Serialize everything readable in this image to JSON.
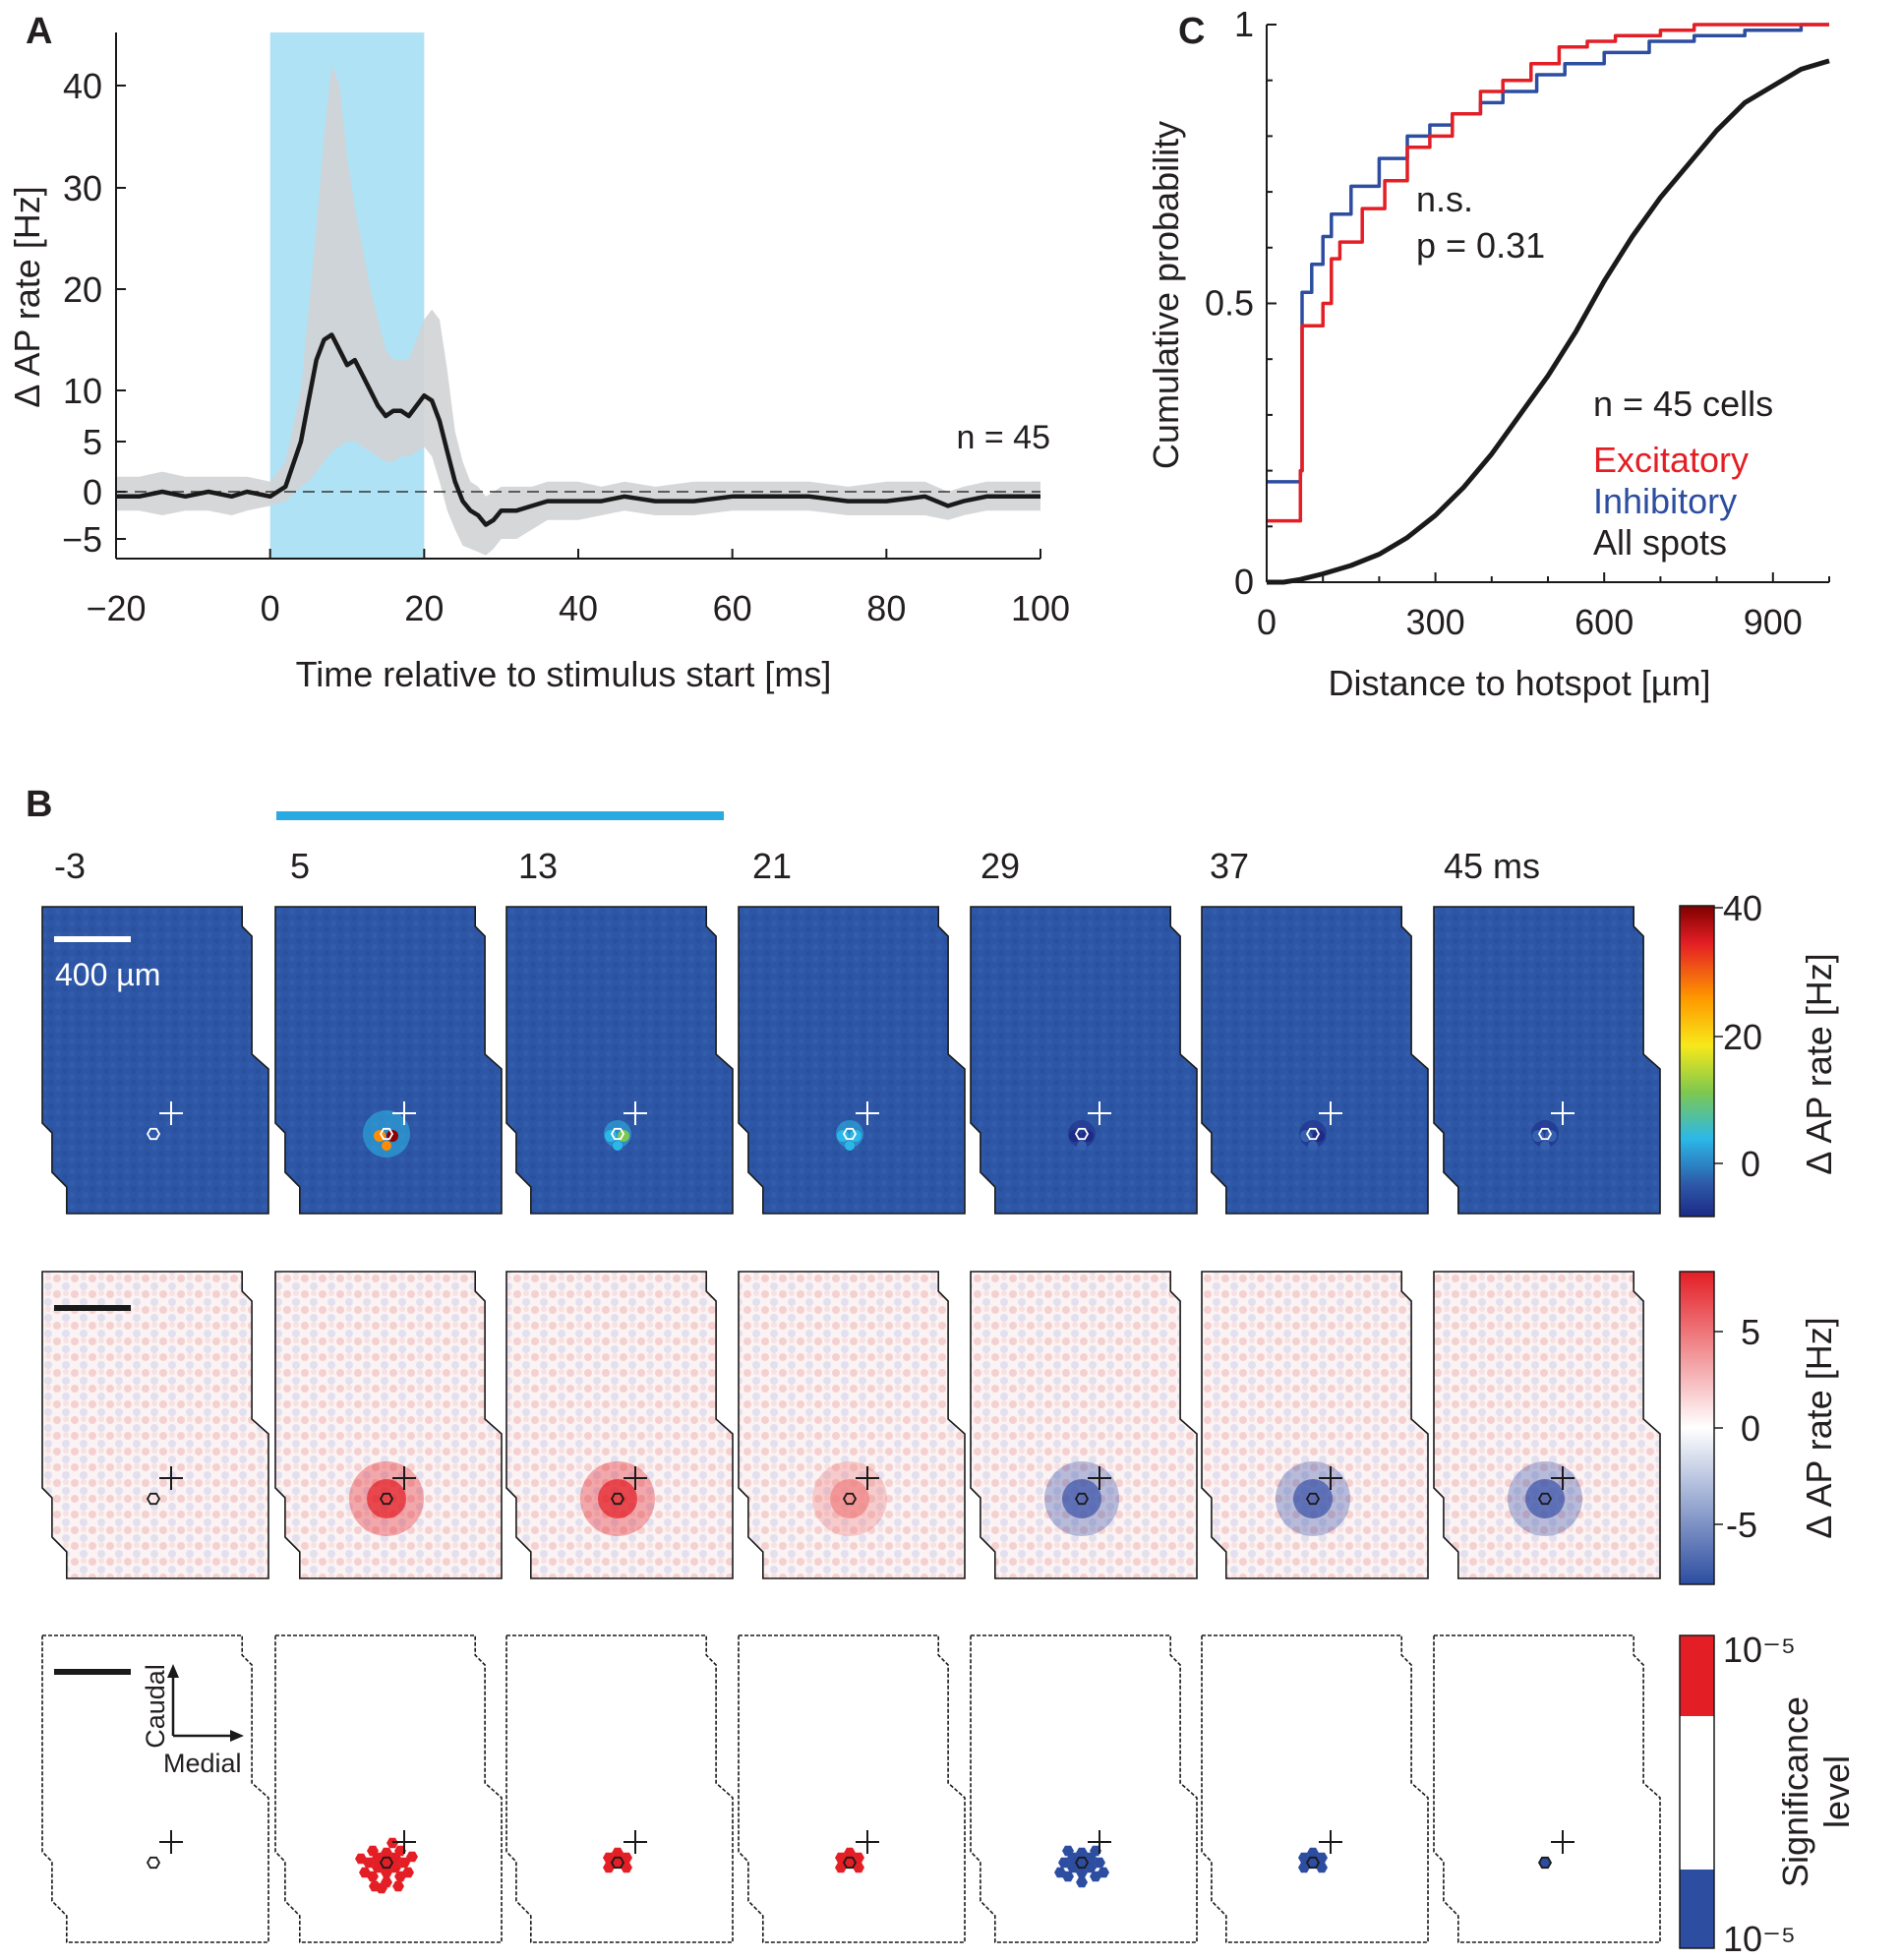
{
  "panel_labels": {
    "a": "A",
    "b": "B",
    "c": "C"
  },
  "colors": {
    "stim": "#b0e2f5",
    "stim_bar": "#29aae1",
    "band": "#d2d3d4",
    "mean": "#1a1a1a",
    "excitatory": "#e31e25",
    "inhibitory": "#2c4da0",
    "all_spots": "#1a1a1a"
  },
  "chart_data": [
    {
      "id": "A",
      "type": "line",
      "xlabel": "Time relative to stimulus start [ms]",
      "ylabel": "Δ AP rate [Hz]",
      "xlim": [
        -20,
        100
      ],
      "ylim": [
        -8,
        45
      ],
      "xticks": [
        -20,
        0,
        20,
        40,
        60,
        80,
        100
      ],
      "xtick_labels": [
        "−20",
        "0",
        "20",
        "40",
        "60",
        "80",
        "100"
      ],
      "yticks": [
        -5,
        0,
        5,
        10,
        20,
        30,
        40
      ],
      "ytick_labels": [
        "−5",
        "0",
        "5",
        "10",
        "20",
        "30",
        "40"
      ],
      "stimulus_window": [
        0,
        20
      ],
      "reference_line": 0,
      "annotation": "n = 45",
      "mean": {
        "x": [
          -20,
          -17,
          -14,
          -11,
          -8,
          -5,
          -3,
          0,
          2,
          4,
          5,
          6,
          7,
          8,
          9,
          10,
          11,
          12,
          13,
          14,
          15,
          16,
          17,
          18,
          19,
          20,
          21,
          22,
          23,
          24,
          25,
          26,
          27,
          28,
          29,
          30,
          32,
          34,
          36,
          38,
          40,
          43,
          46,
          50,
          55,
          60,
          65,
          70,
          75,
          80,
          85,
          88,
          90,
          93,
          96,
          100
        ],
        "y": [
          -0.5,
          -0.5,
          0,
          -0.5,
          0,
          -0.5,
          0,
          -0.5,
          0.5,
          5,
          9,
          13,
          15,
          15.5,
          14,
          12.5,
          13,
          11.5,
          10,
          8.5,
          7.5,
          8,
          8,
          7.5,
          8.5,
          9.5,
          9,
          7,
          4,
          1,
          -1,
          -2,
          -2.5,
          -3.5,
          -3,
          -2,
          -2,
          -1.5,
          -1,
          -1,
          -1,
          -1,
          -0.5,
          -1,
          -1,
          -0.5,
          -0.5,
          -0.5,
          -1,
          -1,
          -0.5,
          -1.5,
          -1,
          -0.5,
          -0.5,
          -0.5
        ]
      },
      "band_upper": [
        1.5,
        1.5,
        2,
        1.5,
        1.5,
        1.5,
        1.5,
        1,
        3,
        10,
        18,
        26,
        35,
        42,
        40,
        33,
        28,
        24,
        20,
        17,
        14,
        13,
        13,
        13,
        15,
        17,
        18,
        17,
        12,
        6,
        3,
        1,
        0.5,
        -0.5,
        0,
        0.5,
        0.5,
        0.5,
        1,
        1,
        1,
        0.5,
        1,
        0.5,
        1,
        1,
        1,
        1,
        0.5,
        1,
        1,
        0,
        0.5,
        1,
        1,
        1
      ],
      "band_lower": [
        -2,
        -2,
        -2.5,
        -2,
        -2,
        -2.5,
        -2,
        -1.5,
        -1,
        0.5,
        1,
        2,
        3,
        4,
        4.5,
        5,
        5,
        4.5,
        4,
        3.5,
        3,
        3,
        3.5,
        3.5,
        4,
        4.5,
        3.5,
        1,
        -2,
        -4,
        -6,
        -6.5,
        -7,
        -7.5,
        -6.5,
        -5,
        -5,
        -4,
        -3,
        -3,
        -3,
        -2.5,
        -2,
        -2.5,
        -2.5,
        -2,
        -2,
        -2,
        -2.5,
        -2.5,
        -2.5,
        -3,
        -2.5,
        -2,
        -2,
        -2
      ]
    },
    {
      "id": "C",
      "type": "line",
      "xlabel": "Distance to hotspot [µm]",
      "ylabel": "Cumulative probability",
      "xlim": [
        0,
        1000
      ],
      "ylim": [
        0,
        1
      ],
      "xticks": [
        0,
        300,
        600,
        900
      ],
      "xtick_labels": [
        "0",
        "300",
        "600",
        "900"
      ],
      "yticks": [
        0,
        0.5,
        1
      ],
      "ytick_labels": [
        "0",
        "0.5",
        "1"
      ],
      "annotation_sig": "n.s.",
      "annotation_p": "p = 0.31",
      "legend_title": "n = 45 cells",
      "series": [
        {
          "name": "Excitatory",
          "x": [
            0,
            60,
            60,
            63,
            63,
            100,
            100,
            115,
            115,
            130,
            130,
            170,
            170,
            210,
            210,
            250,
            250,
            290,
            290,
            330,
            330,
            380,
            380,
            420,
            420,
            470,
            470,
            520,
            520,
            570,
            570,
            620,
            620,
            700,
            700,
            760,
            760,
            1000
          ],
          "y": [
            0.11,
            0.11,
            0.2,
            0.2,
            0.46,
            0.46,
            0.5,
            0.5,
            0.58,
            0.58,
            0.61,
            0.61,
            0.67,
            0.67,
            0.72,
            0.72,
            0.78,
            0.78,
            0.8,
            0.8,
            0.84,
            0.84,
            0.88,
            0.88,
            0.9,
            0.9,
            0.93,
            0.93,
            0.96,
            0.96,
            0.97,
            0.97,
            0.98,
            0.98,
            0.99,
            0.99,
            1,
            1
          ]
        },
        {
          "name": "Inhibitory",
          "x": [
            0,
            60,
            60,
            63,
            63,
            80,
            80,
            100,
            100,
            115,
            115,
            150,
            150,
            200,
            200,
            250,
            250,
            290,
            290,
            330,
            330,
            380,
            380,
            420,
            420,
            480,
            480,
            530,
            530,
            600,
            600,
            680,
            680,
            760,
            760,
            850,
            850,
            950,
            950,
            1000
          ],
          "y": [
            0.18,
            0.18,
            0.2,
            0.2,
            0.52,
            0.52,
            0.57,
            0.57,
            0.62,
            0.62,
            0.66,
            0.66,
            0.71,
            0.71,
            0.76,
            0.76,
            0.8,
            0.8,
            0.82,
            0.82,
            0.84,
            0.84,
            0.86,
            0.86,
            0.88,
            0.88,
            0.91,
            0.91,
            0.93,
            0.93,
            0.95,
            0.95,
            0.97,
            0.97,
            0.98,
            0.98,
            0.99,
            0.99,
            1,
            1
          ]
        },
        {
          "name": "All spots",
          "x": [
            0,
            30,
            60,
            100,
            150,
            200,
            250,
            300,
            350,
            400,
            450,
            500,
            550,
            600,
            650,
            700,
            750,
            800,
            850,
            900,
            950,
            1000
          ],
          "y": [
            0,
            0,
            0.005,
            0.015,
            0.03,
            0.05,
            0.08,
            0.12,
            0.17,
            0.23,
            0.3,
            0.37,
            0.45,
            0.54,
            0.62,
            0.69,
            0.75,
            0.81,
            0.86,
            0.89,
            0.92,
            0.935
          ]
        }
      ]
    }
  ],
  "panel_b": {
    "time_labels": [
      "-3",
      "5",
      "13",
      "21",
      "29",
      "37",
      "45 ms"
    ],
    "scale_label": "400 µm",
    "direction_caudal": "Caudal",
    "direction_medial": "Medial",
    "rows": [
      {
        "name": "absolute",
        "colorbar_label": "Δ AP rate [Hz]",
        "ticks": [
          "40",
          "20",
          "0"
        ],
        "hotspot_peak_hz": [
          0,
          40,
          12,
          8,
          -6,
          -4,
          -2
        ]
      },
      {
        "name": "relative",
        "colorbar_label": "Δ AP rate [Hz]",
        "ticks": [
          "5",
          "0",
          "-5"
        ],
        "hotspot_peak_hz": [
          0,
          8,
          6,
          4,
          -6,
          -5,
          -5
        ]
      },
      {
        "name": "significance",
        "colorbar_label_1": "Significance",
        "colorbar_label_2": "level",
        "tick_top": "10⁻⁵",
        "tick_bottom": "10⁻⁵",
        "significant_spots": [
          0,
          22,
          6,
          6,
          16,
          6,
          1
        ]
      }
    ]
  }
}
